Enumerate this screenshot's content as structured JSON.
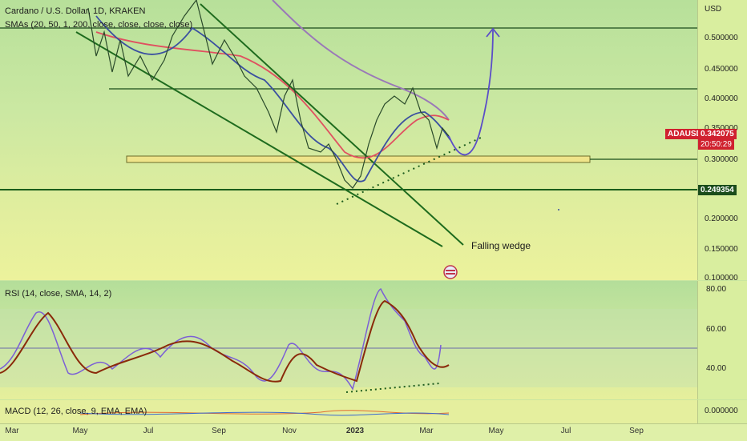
{
  "symbol_legend": "Cardano / U.S. Dollar, 1D, KRAKEN",
  "sma_legend": "SMAs (20, 50, 1, 200, close, close, close, close)",
  "currency": "USD",
  "price_labels": [
    "0.500000",
    "0.450000",
    "0.400000",
    "0.350000",
    "0.300000",
    "0.250000",
    "0.200000",
    "0.150000",
    "0.100000"
  ],
  "ticker_badge": "ADAUSD",
  "last_price": "0.342075",
  "countdown": "20:50:29",
  "level_badge": "0.249354",
  "annotation": "Falling wedge",
  "rsi_legend": "RSI (14, close, SMA, 14, 2)",
  "rsi_labels": [
    "80.00",
    "60.00",
    "40.00"
  ],
  "macd_legend": "MACD (12, 26, close, 9, EMA, EMA)",
  "macd_label": "0.000000",
  "time_labels": [
    "Mar",
    "May",
    "Jul",
    "Sep",
    "Nov",
    "2023",
    "Mar",
    "May",
    "Jul",
    "Sep"
  ],
  "colors": {
    "accent_red": "#d0212f",
    "line_green": "#1e6b1e",
    "rsi_purple": "#7b5fd6",
    "rsi_ma": "#8a2a0a"
  }
}
